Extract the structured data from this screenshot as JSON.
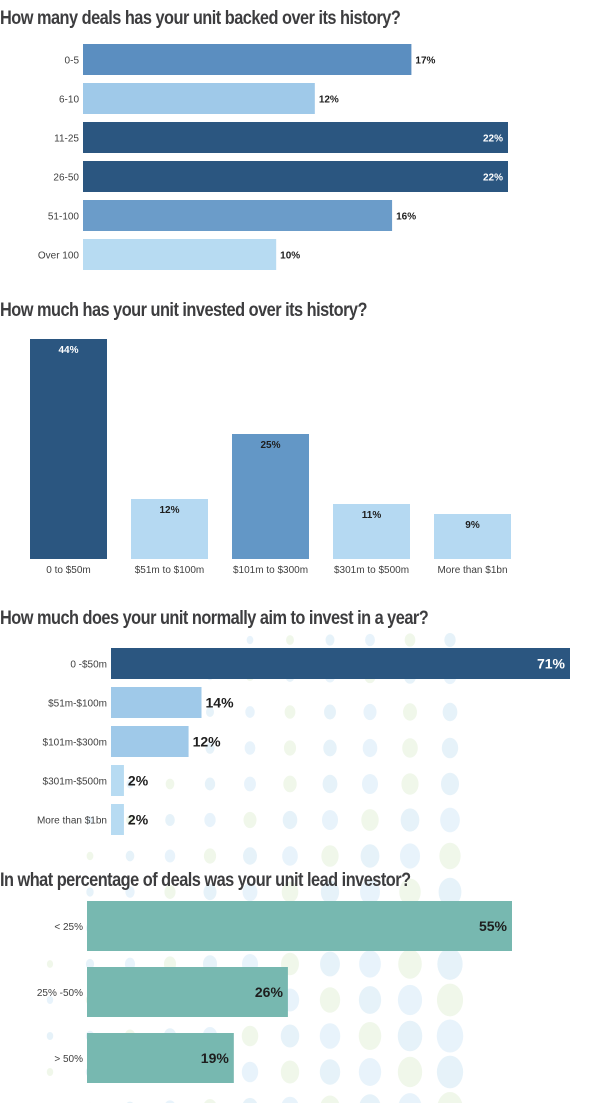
{
  "chart_data": [
    {
      "type": "bar",
      "orientation": "horizontal",
      "title": "How many deals has your unit backed over its history?",
      "categories": [
        "0-5",
        "6-10",
        "11-25",
        "26-50",
        "51-100",
        "Over 100"
      ],
      "values": [
        17,
        12,
        22,
        22,
        16,
        10
      ],
      "labels": [
        "17%",
        "12%",
        "22%",
        "22%",
        "16%",
        "10%"
      ],
      "colors": [
        "#5b8ec0",
        "#9fc9e9",
        "#2b5680",
        "#2b5680",
        "#6b9cc9",
        "#b7dbf2"
      ],
      "xlim": [
        0,
        22
      ],
      "grid": false,
      "legend": "none"
    },
    {
      "type": "bar",
      "orientation": "vertical",
      "title": "How much has your unit invested over its history?",
      "categories": [
        "0 to $50m",
        "$51m to $100m",
        "$101m to $300m",
        "$301m to $500m",
        "More than $1bn"
      ],
      "values": [
        44,
        12,
        25,
        11,
        9
      ],
      "labels": [
        "44%",
        "12%",
        "25%",
        "11%",
        "9%"
      ],
      "colors": [
        "#2b5680",
        "#b5d9f2",
        "#6397c6",
        "#b5d9f2",
        "#b5d9f2"
      ],
      "ylim": [
        0,
        44
      ],
      "grid": false,
      "legend": "none"
    },
    {
      "type": "bar",
      "orientation": "horizontal",
      "title": "How much does your unit normally aim to invest in a year?",
      "categories": [
        "0 -$50m",
        "$51m-$100m",
        "$101m-$300m",
        "$301m-$500m",
        "More than $1bn"
      ],
      "values": [
        71,
        14,
        12,
        2,
        2
      ],
      "labels": [
        "71%",
        "14%",
        "12%",
        "2%",
        "2%"
      ],
      "colors": [
        "#2b5680",
        "#9fc9e9",
        "#9fc9e9",
        "#b7dbf2",
        "#b7dbf2"
      ],
      "xlim": [
        0,
        71
      ],
      "grid": false,
      "legend": "none"
    },
    {
      "type": "bar",
      "orientation": "horizontal",
      "title": "In what percentage of deals was your unit lead investor?",
      "categories": [
        "< 25%",
        "25% -50%",
        "> 50%"
      ],
      "values": [
        55,
        26,
        19
      ],
      "labels": [
        "55%",
        "26%",
        "19%"
      ],
      "colors": [
        "#77b8b0",
        "#77b8b0",
        "#77b8b0"
      ],
      "xlim": [
        0,
        55
      ],
      "grid": false,
      "legend": "none"
    }
  ]
}
